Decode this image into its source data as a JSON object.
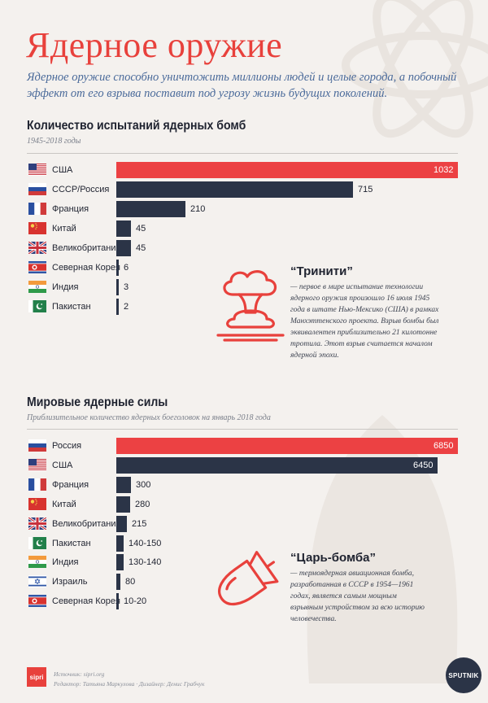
{
  "header": {
    "title": "Ядерное оружие",
    "lead": "Ядерное оружие способно уничтожить миллионы людей и целые города, а побочный эффект от его взрыва поставит под угрозу жизнь будущих поколений."
  },
  "colors": {
    "accent_red": "#ec4143",
    "navy": "#2b3447",
    "background": "#f4f1ee"
  },
  "chart_data": [
    {
      "type": "bar",
      "orientation": "horizontal",
      "title": "Количество испытаний ядерных бомб",
      "subtitle": "1945-2018 годы",
      "categories": [
        "США",
        "СССР/Россия",
        "Франция",
        "Китай",
        "Великобритания",
        "Северная Корея",
        "Индия",
        "Пакистан"
      ],
      "values": [
        1032,
        715,
        210,
        45,
        45,
        6,
        3,
        2
      ],
      "labels": [
        "1032",
        "715",
        "210",
        "45",
        "45",
        "6",
        "3",
        "2"
      ],
      "flags": [
        "us",
        "ru",
        "fr",
        "cn",
        "gb",
        "kp",
        "in",
        "pk"
      ],
      "xlim": [
        0,
        1032
      ],
      "highlight_index": 0,
      "grid": false
    },
    {
      "type": "bar",
      "orientation": "horizontal",
      "title": "Мировые ядерные силы",
      "subtitle": "Приблизительное количество ядерных боеголовок на январь 2018 года",
      "categories": [
        "Россия",
        "США",
        "Франция",
        "Китай",
        "Великобритания",
        "Пакистан",
        "Индия",
        "Израиль",
        "Северная Корея"
      ],
      "values": [
        6850,
        6450,
        300,
        280,
        215,
        150,
        140,
        80,
        20
      ],
      "labels": [
        "6850",
        "6450",
        "300",
        "280",
        "215",
        "140-150",
        "130-140",
        "80",
        "10-20"
      ],
      "flags": [
        "ru",
        "us",
        "fr",
        "cn",
        "gb",
        "pk",
        "in",
        "il",
        "kp"
      ],
      "xlim": [
        0,
        6850
      ],
      "highlight_index": 0,
      "grid": false
    }
  ],
  "facts": [
    {
      "icon": "mushroom-cloud-icon",
      "title": "“Тринити”",
      "text": "— первое в мире испытание технологии ядерного оружия произошло 16 июля 1945 года в штате Нью-Мексико (США) в рамках Манхэттенского проекта. Взрыв бомбы был эквивалентен приблизительно 21 килотонне тротила. Этот взрыв считается началом ядерной эпохи."
    },
    {
      "icon": "bomb-icon",
      "title": "“Царь-бомба”",
      "text": "— термоядерная авиационная бомба, разработанная в СССР в 1954—1961 годах, является самым мощным взрывным устройством за всю историю человечества."
    }
  ],
  "footer": {
    "logo": "sipri",
    "source": "Источник: sipri.org",
    "credits": "Редактор: Татьяна Маркулова · Дизайнер: Денис Грабчук",
    "brand": "SPUTNIK"
  }
}
